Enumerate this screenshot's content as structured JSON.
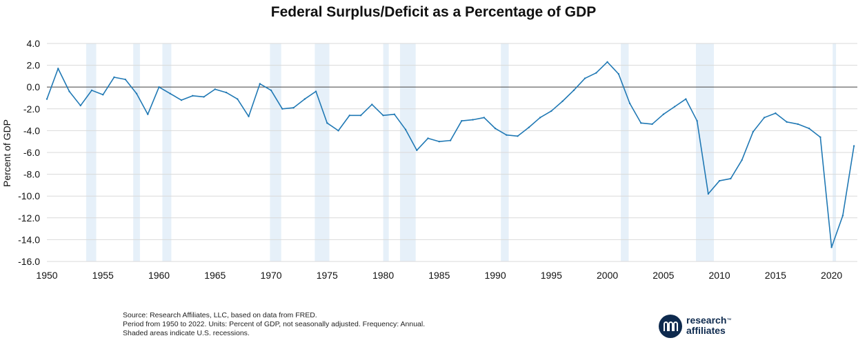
{
  "chart_data": {
    "type": "line",
    "title": "Federal Surplus/Deficit as a Percentage of GDP",
    "ylabel": "Percent of GDP",
    "xlabel": "",
    "xlim": [
      1950,
      2022.3
    ],
    "ylim": [
      -16,
      4
    ],
    "y_ticks": [
      {
        "value": 4,
        "label": "4.0"
      },
      {
        "value": 2,
        "label": "2.0"
      },
      {
        "value": 0,
        "label": "0.0"
      },
      {
        "value": -2,
        "label": "-2.0"
      },
      {
        "value": -4,
        "label": "-4.0"
      },
      {
        "value": -6,
        "label": "-6.0"
      },
      {
        "value": -8,
        "label": "-8.0"
      },
      {
        "value": -10,
        "label": "-10.0"
      },
      {
        "value": -12,
        "label": "-12.0"
      },
      {
        "value": -14,
        "label": "-14.0"
      },
      {
        "value": -16,
        "label": "-16.0"
      }
    ],
    "x_ticks": [
      {
        "value": 1950,
        "label": "1950"
      },
      {
        "value": 1955,
        "label": "1955"
      },
      {
        "value": 1960,
        "label": "1960"
      },
      {
        "value": 1965,
        "label": "1965"
      },
      {
        "value": 1970,
        "label": "1970"
      },
      {
        "value": 1975,
        "label": "1975"
      },
      {
        "value": 1980,
        "label": "1980"
      },
      {
        "value": 1985,
        "label": "1985"
      },
      {
        "value": 1990,
        "label": "1990"
      },
      {
        "value": 1995,
        "label": "1995"
      },
      {
        "value": 2000,
        "label": "2000"
      },
      {
        "value": 2005,
        "label": "2005"
      },
      {
        "value": 2010,
        "label": "2010"
      },
      {
        "value": 2015,
        "label": "2015"
      },
      {
        "value": 2020,
        "label": "2020"
      }
    ],
    "grid": "horizontal",
    "zero_line": true,
    "series": [
      {
        "color": "#1f78b4",
        "points": [
          [
            1950,
            -1.1
          ],
          [
            1951,
            1.7
          ],
          [
            1952,
            -0.4
          ],
          [
            1953,
            -1.7
          ],
          [
            1954,
            -0.3
          ],
          [
            1955,
            -0.7
          ],
          [
            1956,
            0.9
          ],
          [
            1957,
            0.7
          ],
          [
            1958,
            -0.6
          ],
          [
            1959,
            -2.5
          ],
          [
            1960,
            0.0
          ],
          [
            1961,
            -0.6
          ],
          [
            1962,
            -1.2
          ],
          [
            1963,
            -0.8
          ],
          [
            1964,
            -0.9
          ],
          [
            1965,
            -0.2
          ],
          [
            1966,
            -0.5
          ],
          [
            1967,
            -1.1
          ],
          [
            1968,
            -2.7
          ],
          [
            1969,
            0.3
          ],
          [
            1970,
            -0.3
          ],
          [
            1971,
            -2.0
          ],
          [
            1972,
            -1.9
          ],
          [
            1973,
            -1.1
          ],
          [
            1974,
            -0.4
          ],
          [
            1975,
            -3.3
          ],
          [
            1976,
            -4.0
          ],
          [
            1977,
            -2.6
          ],
          [
            1978,
            -2.6
          ],
          [
            1979,
            -1.6
          ],
          [
            1980,
            -2.6
          ],
          [
            1981,
            -2.5
          ],
          [
            1982,
            -3.9
          ],
          [
            1983,
            -5.8
          ],
          [
            1984,
            -4.7
          ],
          [
            1985,
            -5.0
          ],
          [
            1986,
            -4.9
          ],
          [
            1987,
            -3.1
          ],
          [
            1988,
            -3.0
          ],
          [
            1989,
            -2.8
          ],
          [
            1990,
            -3.8
          ],
          [
            1991,
            -4.4
          ],
          [
            1992,
            -4.5
          ],
          [
            1993,
            -3.7
          ],
          [
            1994,
            -2.8
          ],
          [
            1995,
            -2.2
          ],
          [
            1996,
            -1.3
          ],
          [
            1997,
            -0.3
          ],
          [
            1998,
            0.8
          ],
          [
            1999,
            1.3
          ],
          [
            2000,
            2.3
          ],
          [
            2001,
            1.2
          ],
          [
            2002,
            -1.5
          ],
          [
            2003,
            -3.3
          ],
          [
            2004,
            -3.4
          ],
          [
            2005,
            -2.5
          ],
          [
            2006,
            -1.8
          ],
          [
            2007,
            -1.1
          ],
          [
            2008,
            -3.1
          ],
          [
            2009,
            -9.8
          ],
          [
            2010,
            -8.6
          ],
          [
            2011,
            -8.4
          ],
          [
            2012,
            -6.7
          ],
          [
            2013,
            -4.1
          ],
          [
            2014,
            -2.8
          ],
          [
            2015,
            -2.4
          ],
          [
            2016,
            -3.2
          ],
          [
            2017,
            -3.4
          ],
          [
            2018,
            -3.8
          ],
          [
            2019,
            -4.6
          ],
          [
            2020,
            -14.7
          ],
          [
            2021,
            -11.8
          ],
          [
            2022,
            -5.4
          ]
        ]
      }
    ],
    "recessions": [
      [
        1953.5,
        1954.4
      ],
      [
        1957.7,
        1958.3
      ],
      [
        1960.3,
        1961.1
      ],
      [
        1969.9,
        1970.9
      ],
      [
        1973.9,
        1975.2
      ],
      [
        1980.0,
        1980.5
      ],
      [
        1981.5,
        1982.9
      ],
      [
        1990.5,
        1991.2
      ],
      [
        2001.2,
        2001.9
      ],
      [
        2007.9,
        2009.5
      ],
      [
        2020.1,
        2020.4
      ]
    ],
    "colors": {
      "line": "#1f78b4",
      "recession_shade": "#e6f0f9",
      "grid": "#d9d9d9",
      "zero_line": "#555555"
    }
  },
  "footnotes": [
    "Source: Research Affiliates, LLC, based on data from FRED.",
    "Period from 1950 to 2022. Units: Percent of GDP, not seasonally adjusted.  Frequency: Annual.",
    "Shaded areas indicate U.S. recessions."
  ],
  "logo": {
    "line1": "research",
    "tm": "™",
    "line2": "affiliates",
    "color": "#0e2a4e"
  }
}
